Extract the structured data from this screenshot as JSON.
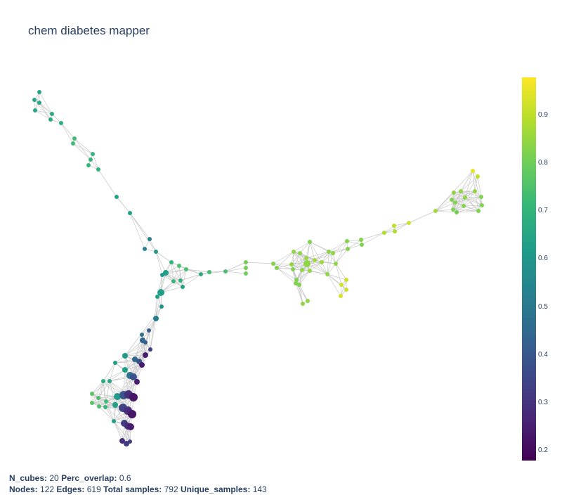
{
  "title": "chem diabetes mapper",
  "colorbar": {
    "ticks": [
      "0.9",
      "0.8",
      "0.7",
      "0.6",
      "0.5",
      "0.4",
      "0.3",
      "0.2"
    ],
    "colors": [
      "#440154",
      "#482777",
      "#3e4989",
      "#31688e",
      "#26828e",
      "#1f9e89",
      "#35b779",
      "#6ece58",
      "#b5de2b",
      "#fde725"
    ]
  },
  "footer": {
    "n_cubes_label": "N_cubes:",
    "n_cubes": "20",
    "perc_overlap_label": "Perc_overlap:",
    "perc_overlap": "0.6",
    "nodes_label": "Nodes:",
    "nodes": "122",
    "edges_label": "Edges:",
    "edges": "619",
    "total_samples_label": "Total samples:",
    "total_samples": "792",
    "unique_samples_label": "Unique_samples:",
    "unique_samples": "143"
  }
}
